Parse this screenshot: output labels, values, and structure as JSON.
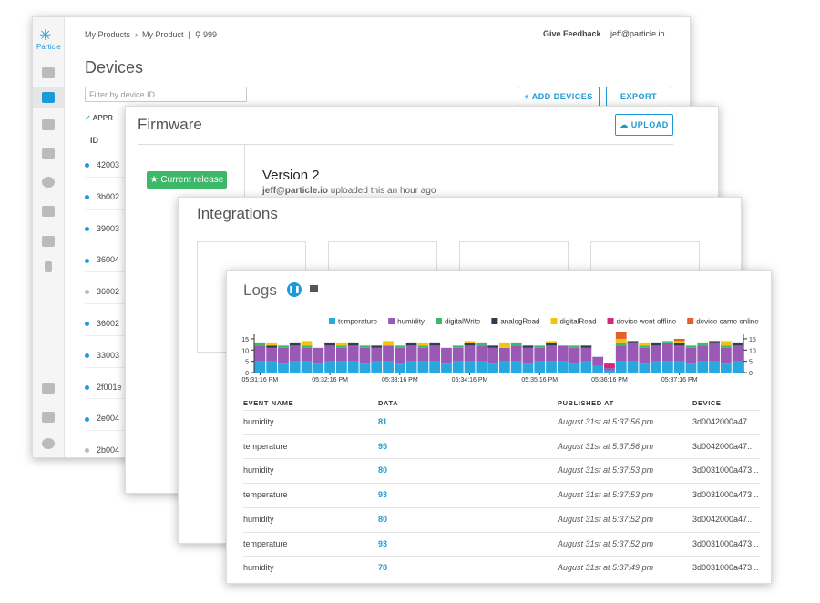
{
  "devices": {
    "logo": "Particle",
    "breadcrumb": [
      "My Products",
      "My Product",
      "999"
    ],
    "feedback": "Give Feedback",
    "user": "jeff@particle.io",
    "title": "Devices",
    "filter_placeholder": "Filter by device ID",
    "buttons": [
      "+ ADD DEVICES",
      "EXPORT"
    ],
    "filter_tag": "APPR",
    "column": "ID",
    "rows": [
      {
        "id": "42003",
        "status": "online"
      },
      {
        "id": "3b002",
        "status": "online"
      },
      {
        "id": "39003",
        "status": "online"
      },
      {
        "id": "36004",
        "status": "online"
      },
      {
        "id": "36002",
        "status": "offline"
      },
      {
        "id": "36002",
        "status": "online"
      },
      {
        "id": "33003",
        "status": "online"
      },
      {
        "id": "2f001e",
        "status": "online"
      },
      {
        "id": "2e004",
        "status": "online"
      },
      {
        "id": "2b004",
        "status": "offline"
      }
    ]
  },
  "firmware": {
    "title": "Firmware",
    "upload": "UPLOAD",
    "current_release": "Current release",
    "version": "Version 2",
    "uploader": "jeff@particle.io",
    "uploaded_text": "uploaded this an hour ago"
  },
  "integrations": {
    "title": "Integrations"
  },
  "logs": {
    "title": "Logs",
    "chart": {
      "type": "bar",
      "stacked": true,
      "categories": [
        "05:31:16 PM",
        null,
        null,
        null,
        null,
        null,
        "05:32:16 PM",
        null,
        null,
        null,
        null,
        null,
        "05:33:16 PM",
        null,
        null,
        null,
        null,
        null,
        "05:34:16 PM",
        null,
        null,
        null,
        null,
        null,
        "05:35:16 PM",
        null,
        null,
        null,
        null,
        null,
        "05:36:16 PM",
        null,
        null,
        null,
        null,
        null,
        "05:37:16 PM",
        null,
        null,
        null,
        null,
        null
      ],
      "ylim": [
        0,
        17
      ],
      "yticks": [
        0,
        5,
        10,
        15
      ],
      "y2lim": [
        0,
        17
      ],
      "y2ticks": [
        0,
        5,
        10,
        15
      ],
      "series": [
        {
          "name": "temperature",
          "color": "#29a8e0",
          "values": [
            5,
            5,
            4,
            5,
            5,
            4,
            5,
            5,
            5,
            4,
            5,
            5,
            4,
            5,
            5,
            5,
            4,
            5,
            5,
            5,
            4,
            5,
            5,
            4,
            5,
            5,
            5,
            4,
            5,
            3,
            1,
            5,
            5,
            4,
            5,
            5,
            5,
            4,
            5,
            5,
            4,
            5
          ]
        },
        {
          "name": "humidity",
          "color": "#9b59b6",
          "values": [
            7,
            6,
            7,
            7,
            6,
            7,
            7,
            6,
            7,
            7,
            6,
            7,
            7,
            7,
            6,
            7,
            7,
            6,
            7,
            7,
            7,
            6,
            7,
            7,
            6,
            7,
            7,
            7,
            6,
            4,
            1,
            7,
            8,
            7,
            7,
            8,
            7,
            7,
            7,
            8,
            7,
            7
          ]
        },
        {
          "name": "digitalWrite",
          "color": "#3cb868",
          "values": [
            1,
            0,
            1,
            0,
            1,
            0,
            0,
            1,
            0,
            1,
            0,
            0,
            1,
            0,
            1,
            0,
            0,
            1,
            0,
            1,
            0,
            0,
            1,
            0,
            1,
            0,
            0,
            1,
            0,
            0,
            0,
            1,
            0,
            1,
            0,
            1,
            0,
            1,
            1,
            0,
            1,
            0
          ]
        },
        {
          "name": "analogRead",
          "color": "#2c3e50",
          "values": [
            0,
            1,
            0,
            1,
            0,
            0,
            1,
            0,
            1,
            0,
            1,
            0,
            0,
            1,
            0,
            1,
            0,
            0,
            1,
            0,
            1,
            0,
            0,
            1,
            0,
            1,
            0,
            0,
            1,
            0,
            0,
            0,
            1,
            0,
            1,
            0,
            1,
            0,
            0,
            1,
            0,
            1
          ]
        },
        {
          "name": "digitalRead",
          "color": "#f1c40f",
          "values": [
            0,
            1,
            0,
            0,
            2,
            0,
            0,
            1,
            0,
            0,
            0,
            2,
            0,
            0,
            1,
            0,
            0,
            0,
            1,
            0,
            0,
            2,
            0,
            0,
            0,
            1,
            0,
            0,
            0,
            0,
            0,
            2,
            0,
            1,
            0,
            0,
            1,
            0,
            0,
            0,
            2,
            0
          ]
        },
        {
          "name": "device went offline",
          "color": "#d6277e",
          "values": [
            0,
            0,
            0,
            0,
            0,
            0,
            0,
            0,
            0,
            0,
            0,
            0,
            0,
            0,
            0,
            0,
            0,
            0,
            0,
            0,
            0,
            0,
            0,
            0,
            0,
            0,
            0,
            0,
            0,
            0,
            2,
            0,
            0,
            0,
            0,
            0,
            0,
            0,
            0,
            0,
            0,
            0
          ]
        },
        {
          "name": "device came online",
          "color": "#e0622a",
          "values": [
            0,
            0,
            0,
            0,
            0,
            0,
            0,
            0,
            0,
            0,
            0,
            0,
            0,
            0,
            0,
            0,
            0,
            0,
            0,
            0,
            0,
            0,
            0,
            0,
            0,
            0,
            0,
            0,
            0,
            0,
            0,
            3,
            0,
            0,
            0,
            0,
            1,
            0,
            0,
            0,
            0,
            0
          ]
        }
      ]
    },
    "table": {
      "columns": [
        "EVENT NAME",
        "DATA",
        "PUBLISHED AT",
        "DEVICE"
      ],
      "rows": [
        [
          "humidity",
          "81",
          "August 31st at 5:37:56 pm",
          "3d0042000a47..."
        ],
        [
          "temperature",
          "95",
          "August 31st at 5:37:56 pm",
          "3d0042000a47..."
        ],
        [
          "humidity",
          "80",
          "August 31st at 5:37:53 pm",
          "3d0031000a473..."
        ],
        [
          "temperature",
          "93",
          "August 31st at 5:37:53 pm",
          "3d0031000a473..."
        ],
        [
          "humidity",
          "80",
          "August 31st at 5:37:52 pm",
          "3d0042000a47..."
        ],
        [
          "temperature",
          "93",
          "August 31st at 5:37:52 pm",
          "3d0031000a473..."
        ],
        [
          "humidity",
          "78",
          "August 31st at 5:37:49 pm",
          "3d0031000a473..."
        ]
      ]
    }
  }
}
